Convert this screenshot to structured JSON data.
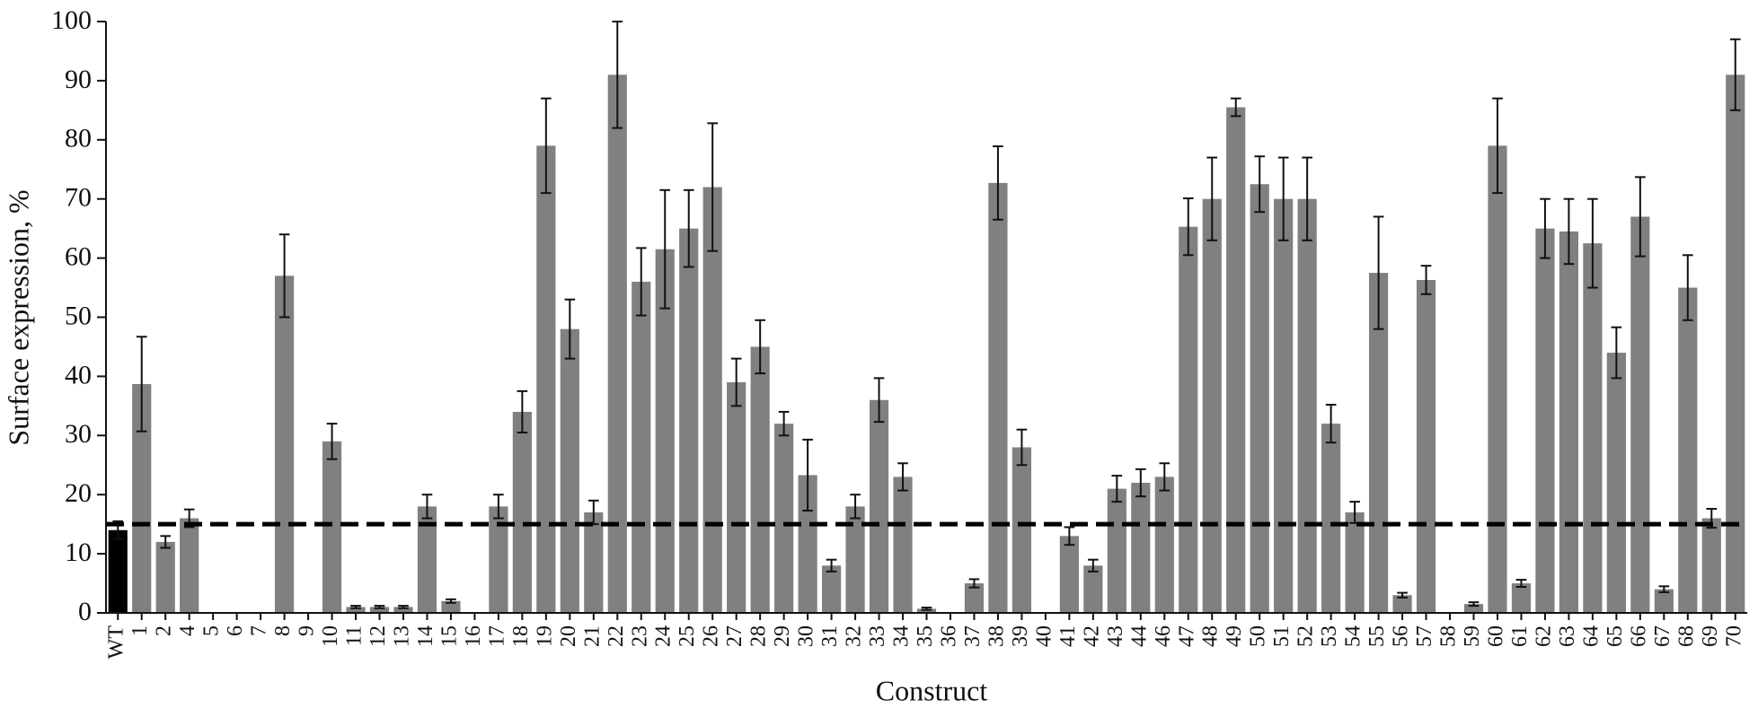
{
  "chart_data": {
    "type": "bar",
    "xlabel": "Construct",
    "ylabel": "Surface expression, %",
    "categories": [
      "WT",
      "1",
      "2",
      "4",
      "5",
      "6",
      "7",
      "8",
      "9",
      "10",
      "11",
      "12",
      "13",
      "14",
      "15",
      "16",
      "17",
      "18",
      "19",
      "20",
      "21",
      "22",
      "23",
      "24",
      "25",
      "26",
      "27",
      "28",
      "29",
      "30",
      "31",
      "32",
      "33",
      "34",
      "35",
      "36",
      "37",
      "38",
      "39",
      "40",
      "41",
      "42",
      "43",
      "44",
      "46",
      "47",
      "48",
      "49",
      "50",
      "51",
      "52",
      "53",
      "54",
      "55",
      "56",
      "57",
      "58",
      "59",
      "60",
      "61",
      "62",
      "63",
      "64",
      "65",
      "66",
      "67",
      "68",
      "69",
      "70"
    ],
    "values": [
      14,
      38.7,
      12,
      16,
      0,
      0,
      0,
      57,
      0,
      29,
      1,
      1,
      1,
      18,
      2,
      0,
      18,
      34,
      79,
      48,
      17,
      91,
      56,
      61.5,
      65,
      72,
      39,
      45,
      32,
      23.3,
      8,
      18,
      36,
      23,
      0.7,
      0,
      5,
      72.7,
      28,
      0,
      13,
      8,
      21,
      22,
      23,
      65.3,
      70,
      85.5,
      72.5,
      70,
      70,
      32,
      17,
      57.5,
      3,
      56.3,
      0,
      1.5,
      79,
      5,
      65,
      64.5,
      62.5,
      44,
      67,
      4,
      55,
      16,
      91
    ],
    "errors": [
      1.5,
      8,
      1,
      1.5,
      0,
      0,
      0,
      7,
      0,
      3,
      0.2,
      0.2,
      0.2,
      2,
      0.3,
      0,
      2,
      3.5,
      8,
      5,
      2,
      9,
      5.7,
      10,
      6.5,
      10.8,
      4,
      4.5,
      2,
      6,
      1,
      2,
      3.7,
      2.3,
      0.2,
      0,
      0.7,
      6.2,
      3,
      0,
      1.5,
      1,
      2.2,
      2.3,
      2.3,
      4.8,
      7,
      1.5,
      4.7,
      7,
      7,
      3.2,
      1.8,
      9.5,
      0.4,
      2.4,
      0,
      0.3,
      8,
      0.6,
      5,
      5.5,
      7.5,
      4.3,
      6.7,
      0.5,
      5.5,
      1.6,
      6
    ],
    "color": "#808080",
    "highlight_color": "#000000",
    "highlight_index": 0,
    "reference_line": 15,
    "ylim": [
      0,
      100
    ],
    "yticks": [
      0,
      10,
      20,
      30,
      40,
      50,
      60,
      70,
      80,
      90,
      100
    ]
  }
}
